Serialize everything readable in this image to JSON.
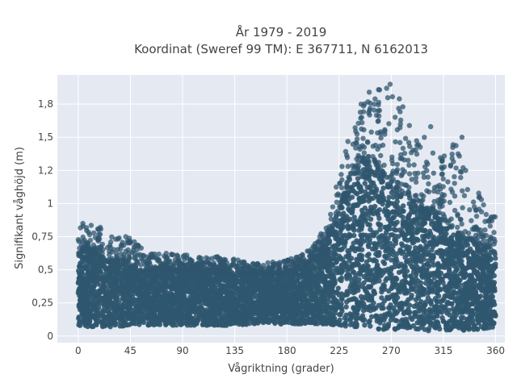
{
  "chart_data": {
    "type": "scatter",
    "title_line1": "År 1979 - 2019",
    "title_line2": "Koordinat (Sweref 99 TM): E 367711, N 6162013",
    "xlabel": "Vågriktning (grader)",
    "ylabel": "Signifikant våghöjd (m)",
    "xlim": [
      -18,
      368
    ],
    "ylim": [
      -0.05,
      1.97
    ],
    "x_ticks": [
      0,
      45,
      90,
      135,
      180,
      225,
      270,
      315,
      360
    ],
    "x_tick_labels": [
      "0",
      "45",
      "90",
      "135",
      "180",
      "225",
      "270",
      "315",
      "360"
    ],
    "y_ticks": [
      0,
      0.25,
      0.5,
      0.75,
      1,
      1.25,
      1.5,
      1.75
    ],
    "y_tick_labels": [
      "0",
      "0,25",
      "0,5",
      "0,75",
      "1",
      "1,2",
      "1,5",
      "1,8"
    ],
    "grid": true,
    "colors": {
      "marker": "#2f566e",
      "plot_bg": "#e5e9f2",
      "grid": "#ffffff"
    },
    "envelope": {
      "x": [
        0,
        10,
        20,
        30,
        45,
        60,
        90,
        120,
        135,
        150,
        165,
        180,
        195,
        205,
        215,
        225,
        235,
        245,
        255,
        265,
        275,
        285,
        295,
        305,
        315,
        325,
        335,
        345,
        355,
        360
      ],
      "y_min": [
        0.07,
        0.07,
        0.07,
        0.07,
        0.08,
        0.08,
        0.08,
        0.08,
        0.08,
        0.09,
        0.09,
        0.09,
        0.09,
        0.09,
        0.09,
        0.08,
        0.07,
        0.06,
        0.05,
        0.05,
        0.05,
        0.04,
        0.04,
        0.04,
        0.04,
        0.04,
        0.04,
        0.05,
        0.06,
        0.07
      ],
      "y_dense_max": [
        0.62,
        0.65,
        0.6,
        0.56,
        0.52,
        0.5,
        0.5,
        0.48,
        0.47,
        0.47,
        0.47,
        0.48,
        0.52,
        0.6,
        0.72,
        0.95,
        1.2,
        1.32,
        1.3,
        1.2,
        1.12,
        1.05,
        0.98,
        0.92,
        0.86,
        0.8,
        0.74,
        0.7,
        0.66,
        0.62
      ],
      "y_max": [
        0.82,
        0.85,
        0.82,
        0.75,
        0.74,
        0.63,
        0.62,
        0.6,
        0.58,
        0.55,
        0.56,
        0.58,
        0.62,
        0.72,
        0.85,
        1.25,
        1.55,
        1.82,
        1.85,
        1.92,
        1.75,
        1.6,
        1.55,
        1.45,
        1.4,
        1.5,
        1.3,
        1.1,
        0.95,
        0.9
      ]
    },
    "notable_points": [
      {
        "x": 244,
        "y": 1.75
      },
      {
        "x": 251,
        "y": 1.84
      },
      {
        "x": 269,
        "y": 1.9
      },
      {
        "x": 266,
        "y": 1.87
      },
      {
        "x": 277,
        "y": 1.79
      },
      {
        "x": 280,
        "y": 1.73
      },
      {
        "x": 304,
        "y": 1.58
      },
      {
        "x": 331,
        "y": 1.5
      },
      {
        "x": 332,
        "y": 1.27
      },
      {
        "x": 4,
        "y": 0.85
      },
      {
        "x": 19,
        "y": 0.82
      },
      {
        "x": 41,
        "y": 0.75
      }
    ]
  }
}
